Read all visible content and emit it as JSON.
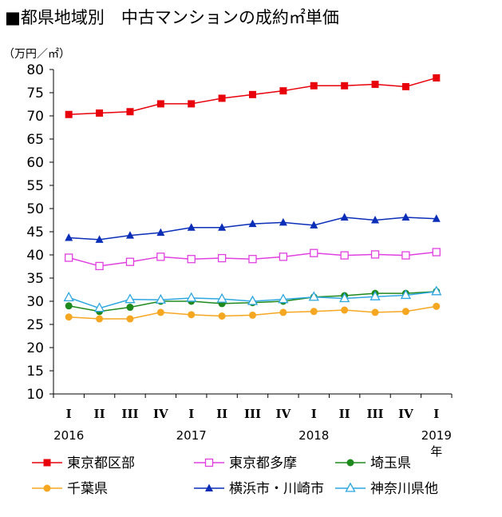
{
  "title": "■都県地域別　中古マンションの成約㎡単価",
  "colors": {
    "tokyo_ku": "#e8000b",
    "tokyo_tama": "#e040e0",
    "saitama": "#1e8a1e",
    "chiba": "#f6a722",
    "yokohama": "#0a2eb8",
    "kanagawa": "#2ea6e0"
  },
  "chart_data": {
    "type": "line",
    "y_unit_label": "（万円／㎡）",
    "ylim": [
      10,
      80
    ],
    "yticks": [
      10,
      15,
      20,
      25,
      30,
      35,
      40,
      45,
      50,
      55,
      60,
      65,
      70,
      75,
      80
    ],
    "categories": [
      "I",
      "II",
      "III",
      "IV",
      "I",
      "II",
      "III",
      "IV",
      "I",
      "II",
      "III",
      "IV",
      "I"
    ],
    "year_labels": [
      {
        "index": 0,
        "text": "2016"
      },
      {
        "index": 4,
        "text": "2017"
      },
      {
        "index": 8,
        "text": "2018"
      },
      {
        "index": 12,
        "text": "2019"
      }
    ],
    "year_suffix": "年",
    "grid": false,
    "legend_position": "bottom",
    "series": [
      {
        "name": "東京都区部",
        "color": "#e8000b",
        "marker": "square-filled",
        "values": [
          70.3,
          70.6,
          70.9,
          72.6,
          72.6,
          73.8,
          74.6,
          75.4,
          76.5,
          76.5,
          76.8,
          76.3,
          78.2
        ]
      },
      {
        "name": "東京都多摩",
        "color": "#e040e0",
        "marker": "square-open",
        "values": [
          39.4,
          37.6,
          38.5,
          39.6,
          39.1,
          39.3,
          39.1,
          39.6,
          40.4,
          39.9,
          40.1,
          39.9,
          40.6
        ]
      },
      {
        "name": "埼玉県",
        "color": "#1e8a1e",
        "marker": "circle-filled",
        "values": [
          29.0,
          27.8,
          28.7,
          30.0,
          30.0,
          29.5,
          29.7,
          30.0,
          30.9,
          31.2,
          31.7,
          31.7,
          32.1
        ]
      },
      {
        "name": "千葉県",
        "color": "#f6a722",
        "marker": "circle-filled",
        "values": [
          26.6,
          26.2,
          26.2,
          27.6,
          27.1,
          26.8,
          27.0,
          27.6,
          27.8,
          28.1,
          27.6,
          27.8,
          28.9
        ]
      },
      {
        "name": "横浜市・川崎市",
        "color": "#0a2eb8",
        "marker": "triangle-filled",
        "values": [
          43.7,
          43.3,
          44.2,
          44.8,
          45.9,
          45.9,
          46.7,
          47.0,
          46.4,
          48.1,
          47.5,
          48.1,
          47.8
        ]
      },
      {
        "name": "神奈川県他",
        "color": "#2ea6e0",
        "marker": "triangle-open",
        "values": [
          30.8,
          28.5,
          30.4,
          30.3,
          30.7,
          30.5,
          30.0,
          30.4,
          30.9,
          30.6,
          31.0,
          31.3,
          32.1
        ]
      }
    ]
  }
}
